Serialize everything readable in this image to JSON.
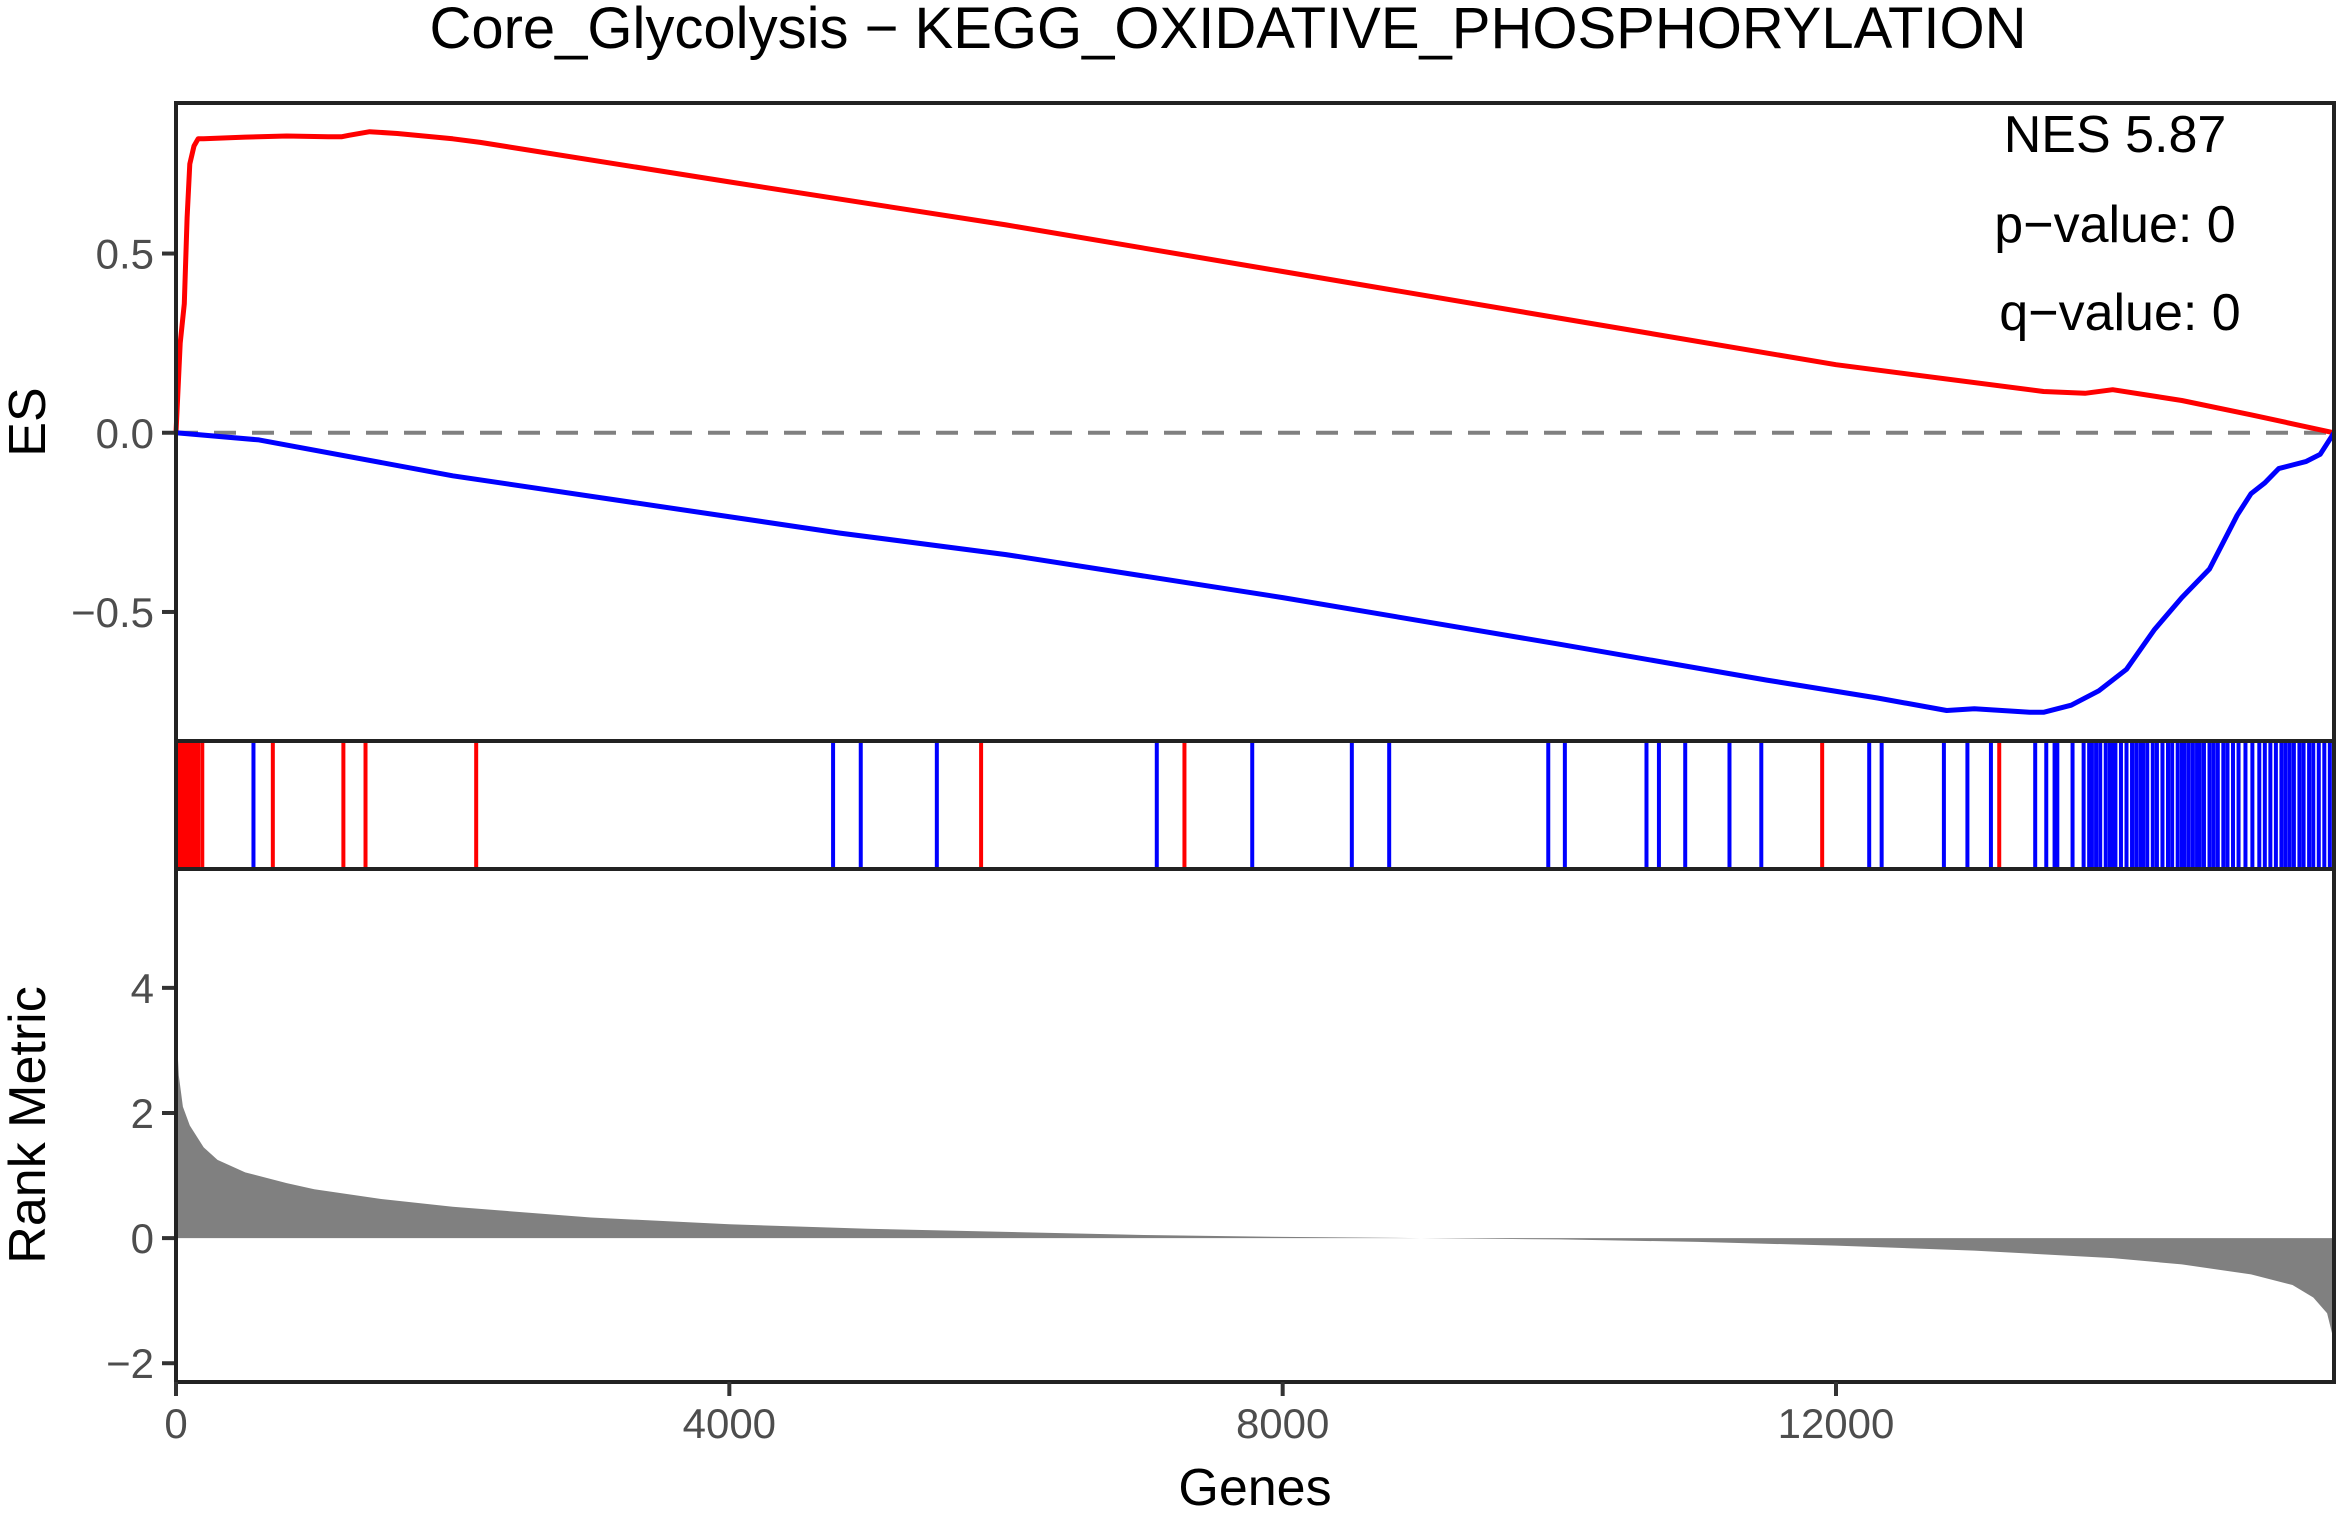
{
  "chart_data": {
    "type": "line",
    "title": "Core_Glycolysis − KEGG_OXIDATIVE_PHOSPHORYLATION",
    "xlabel": "Genes",
    "xlim": [
      0,
      15600
    ],
    "x_ticks": [
      "0",
      "4000",
      "8000",
      "12000"
    ],
    "x_tick_values": [
      0,
      4000,
      8000,
      12000
    ],
    "stats": {
      "nes": "NES 5.87",
      "pvalue": "p−value: 0",
      "qvalue": "q−value: 0"
    },
    "es_panel": {
      "ylabel": "ES",
      "ylim": [
        -0.86,
        0.92
      ],
      "y_ticks": [
        "0.5",
        "0.0",
        "−0.5"
      ],
      "y_tick_values": [
        0.5,
        0.0,
        -0.5
      ],
      "zero_line": "dashed",
      "series": [
        {
          "color": "#ff0000",
          "x": [
            0,
            30,
            60,
            80,
            100,
            130,
            160,
            200,
            500,
            800,
            1100,
            1200,
            1250,
            1400,
            1600,
            2000,
            2200,
            4000,
            6000,
            8000,
            10000,
            12000,
            13500,
            13800,
            14000,
            14500,
            15000,
            15600
          ],
          "y": [
            0.0,
            0.25,
            0.36,
            0.6,
            0.75,
            0.8,
            0.82,
            0.82,
            0.825,
            0.828,
            0.826,
            0.826,
            0.83,
            0.84,
            0.835,
            0.82,
            0.81,
            0.7,
            0.58,
            0.45,
            0.32,
            0.19,
            0.115,
            0.11,
            0.12,
            0.09,
            0.05,
            0.0
          ]
        },
        {
          "color": "#0000ff",
          "x": [
            0,
            600,
            2000,
            4800,
            6000,
            8000,
            10000,
            11500,
            12300,
            12800,
            13000,
            13400,
            13500,
            13700,
            13900,
            14100,
            14300,
            14500,
            14700,
            14900,
            15000,
            15100,
            15200,
            15300,
            15400,
            15500,
            15600
          ],
          "y": [
            0.0,
            -0.02,
            -0.12,
            -0.28,
            -0.34,
            -0.46,
            -0.59,
            -0.69,
            -0.74,
            -0.775,
            -0.77,
            -0.78,
            -0.78,
            -0.76,
            -0.72,
            -0.66,
            -0.55,
            -0.46,
            -0.38,
            -0.23,
            -0.17,
            -0.14,
            -0.1,
            -0.09,
            -0.08,
            -0.06,
            0.0
          ]
        }
      ]
    },
    "hits": {
      "red": [
        20,
        40,
        60,
        80,
        100,
        120,
        140,
        160,
        190,
        700,
        1210,
        1370,
        2170,
        5820,
        7290,
        11900,
        13180
      ],
      "blue": [
        560,
        4750,
        4950,
        5500,
        7090,
        7780,
        8500,
        8770,
        9920,
        10040,
        10630,
        10720,
        10910,
        11230,
        11460,
        12240,
        12330,
        12780,
        12950,
        13120,
        13440,
        13520,
        13580,
        13600,
        13710,
        13790,
        13830,
        13850,
        13880,
        13910,
        13950,
        13980,
        14000,
        14020,
        14060,
        14100,
        14140,
        14170,
        14200,
        14220,
        14250,
        14290,
        14320,
        14360,
        14400,
        14430,
        14470,
        14500,
        14520,
        14550,
        14580,
        14610,
        14630,
        14660,
        14700,
        14730,
        14760,
        14800,
        14830,
        14870,
        14910,
        14960,
        15010,
        15060,
        15100,
        15140,
        15180,
        15220,
        15250,
        15280,
        15310,
        15350,
        15380,
        15420,
        15450,
        15490,
        15530,
        15570
      ]
    },
    "rank_panel": {
      "ylabel": "Rank Metric",
      "ylim": [
        -2.3,
        5.9
      ],
      "y_ticks": [
        "4",
        "2",
        "0",
        "−2"
      ],
      "y_tick_values": [
        4,
        2,
        0,
        -2
      ],
      "fill": "#808080",
      "x": [
        0,
        20,
        50,
        100,
        200,
        300,
        500,
        800,
        1000,
        1500,
        2000,
        3000,
        4000,
        5000,
        6000,
        7000,
        8000,
        9000,
        10000,
        11000,
        12000,
        13000,
        14000,
        14500,
        15000,
        15300,
        15450,
        15550,
        15600
      ],
      "y": [
        3.5,
        2.6,
        2.1,
        1.8,
        1.45,
        1.25,
        1.05,
        0.88,
        0.78,
        0.62,
        0.5,
        0.33,
        0.22,
        0.15,
        0.1,
        0.05,
        0.02,
        0.0,
        -0.02,
        -0.06,
        -0.12,
        -0.2,
        -0.32,
        -0.42,
        -0.58,
        -0.75,
        -0.95,
        -1.2,
        -1.65
      ]
    }
  }
}
